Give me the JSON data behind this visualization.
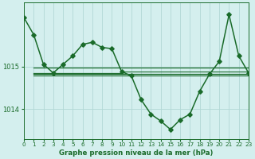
{
  "title": "Graphe pression niveau de la mer (hPa)",
  "background_color": "#d4efee",
  "grid_color": "#b2d8d6",
  "line_color": "#1a6b2a",
  "x_min": 0,
  "x_max": 23,
  "y_min": 1013.3,
  "y_max": 1016.5,
  "yticks": [
    1014,
    1015
  ],
  "ytick_labels": [
    "1014",
    "1015"
  ],
  "xticks": [
    0,
    1,
    2,
    3,
    4,
    5,
    6,
    7,
    8,
    9,
    10,
    11,
    12,
    13,
    14,
    15,
    16,
    17,
    18,
    19,
    20,
    21,
    22,
    23
  ],
  "main_series": {
    "x": [
      0,
      1,
      2,
      3,
      4,
      5,
      6,
      7,
      8,
      9,
      10,
      11,
      12,
      13,
      14,
      15,
      16,
      17,
      18,
      19,
      20,
      21,
      22,
      23
    ],
    "y": [
      1016.15,
      1015.75,
      1015.05,
      1014.85,
      1015.05,
      1015.25,
      1015.52,
      1015.57,
      1015.45,
      1015.42,
      1014.88,
      1014.78,
      1014.22,
      1013.88,
      1013.72,
      1013.52,
      1013.75,
      1013.88,
      1014.42,
      1014.82,
      1015.12,
      1016.22,
      1015.25,
      1014.85
    ],
    "marker": "D",
    "markersize": 2.8,
    "linewidth": 1.1
  },
  "flat_lines": [
    {
      "x": [
        1,
        23
      ],
      "y": [
        1014.97,
        1014.97
      ],
      "linewidth": 0.9
    },
    {
      "x": [
        1,
        10
      ],
      "y": [
        1014.85,
        1014.85
      ],
      "linewidth": 0.9
    },
    {
      "x": [
        1,
        23
      ],
      "y": [
        1014.82,
        1014.82
      ],
      "linewidth": 0.9
    },
    {
      "x": [
        1,
        23
      ],
      "y": [
        1014.78,
        1014.78
      ],
      "linewidth": 0.8
    },
    {
      "x": [
        10,
        23
      ],
      "y": [
        1014.88,
        1014.88
      ],
      "linewidth": 0.8
    }
  ]
}
